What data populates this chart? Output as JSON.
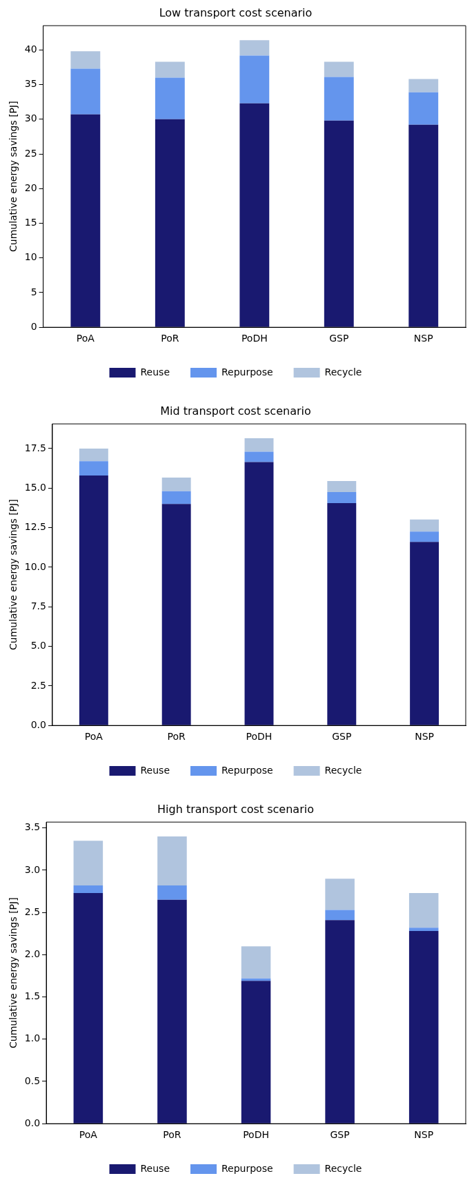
{
  "chart_data": [
    {
      "type": "bar",
      "title": "Low transport cost scenario",
      "ylabel": "Cumulative energy savings [PJ]",
      "categories": [
        "PoA",
        "PoR",
        "PoDH",
        "GSP",
        "NSP"
      ],
      "stacked": true,
      "series": [
        {
          "name": "Reuse",
          "color": "#191970",
          "values": [
            30.7,
            30.0,
            32.3,
            29.8,
            29.2
          ]
        },
        {
          "name": "Repurpose",
          "color": "#6495ed",
          "values": [
            6.6,
            6.0,
            6.9,
            6.3,
            4.7
          ]
        },
        {
          "name": "Recycle",
          "color": "#b0c4de",
          "values": [
            2.5,
            2.3,
            2.2,
            2.2,
            1.9
          ]
        }
      ],
      "ylim": [
        0,
        43.5
      ],
      "yticks": [
        0,
        5,
        10,
        15,
        20,
        25,
        30,
        35,
        40
      ],
      "grid": false,
      "legend": "bottom"
    },
    {
      "type": "bar",
      "title": "Mid transport cost scenario",
      "ylabel": "Cumulative energy savings [PJ]",
      "categories": [
        "PoA",
        "PoR",
        "PoDH",
        "GSP",
        "NSP"
      ],
      "stacked": true,
      "series": [
        {
          "name": "Reuse",
          "color": "#191970",
          "values": [
            15.8,
            14.0,
            16.65,
            14.05,
            11.6
          ]
        },
        {
          "name": "Repurpose",
          "color": "#6495ed",
          "values": [
            0.9,
            0.8,
            0.65,
            0.7,
            0.65
          ]
        },
        {
          "name": "Recycle",
          "color": "#b0c4de",
          "values": [
            0.8,
            0.87,
            0.85,
            0.7,
            0.77
          ]
        }
      ],
      "ylim": [
        0,
        19.06
      ],
      "yticks": [
        {
          "value": 0,
          "label": "0.0"
        },
        2.5,
        {
          "value": 5,
          "label": "5.0"
        },
        7.5,
        {
          "value": 10,
          "label": "10.0"
        },
        12.5,
        {
          "value": 15,
          "label": "15.0"
        },
        17.5
      ],
      "grid": false,
      "legend": "bottom"
    },
    {
      "type": "bar",
      "title": "High transport cost scenario",
      "ylabel": "Cumulative energy savings [PJ]",
      "categories": [
        "PoA",
        "PoR",
        "PoDH",
        "GSP",
        "NSP"
      ],
      "stacked": true,
      "series": [
        {
          "name": "Reuse",
          "color": "#191970",
          "values": [
            2.73,
            2.65,
            1.69,
            2.41,
            2.28
          ]
        },
        {
          "name": "Repurpose",
          "color": "#6495ed",
          "values": [
            0.09,
            0.17,
            0.03,
            0.12,
            0.04
          ]
        },
        {
          "name": "Recycle",
          "color": "#b0c4de",
          "values": [
            0.53,
            0.58,
            0.38,
            0.37,
            0.41
          ]
        }
      ],
      "ylim": [
        0,
        3.57
      ],
      "yticks": [
        {
          "value": 0,
          "label": "0.0"
        },
        0.5,
        {
          "value": 1,
          "label": "1.0"
        },
        1.5,
        {
          "value": 2,
          "label": "2.0"
        },
        2.5,
        {
          "value": 3,
          "label": "3.0"
        },
        3.5
      ],
      "grid": false,
      "legend": "bottom"
    }
  ]
}
